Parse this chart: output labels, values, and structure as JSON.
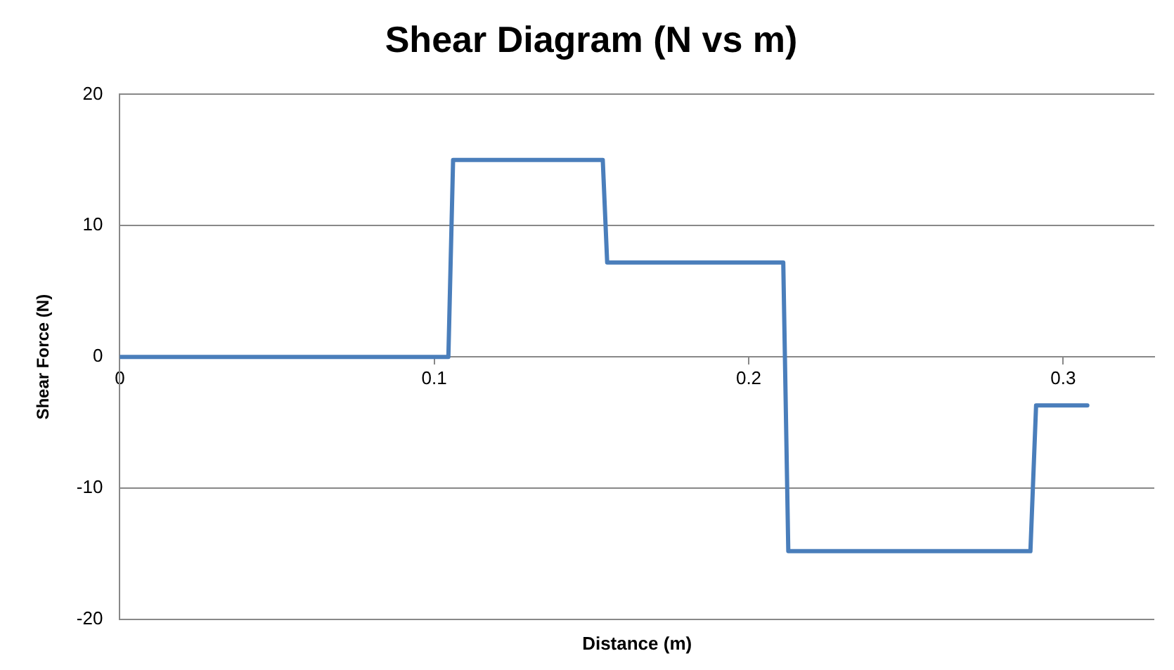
{
  "chart_data": {
    "type": "line",
    "title": "Shear Diagram (N vs m)",
    "xlabel": "Distance (m)",
    "ylabel": "Shear Force (N)",
    "x": [
      0,
      0.1045,
      0.106,
      0.1536,
      0.155,
      0.211,
      0.2126,
      0.2896,
      0.2914,
      0.3077
    ],
    "series": [
      {
        "color": "#4a7ebb",
        "values": [
          0,
          0,
          15,
          15,
          7.2,
          7.2,
          -14.8,
          -14.8,
          -3.7,
          -3.7
        ]
      }
    ],
    "xlim": [
      0,
      0.329
    ],
    "xticks": [
      0,
      0.1,
      0.2,
      0.3
    ],
    "ylim": [
      -20,
      20
    ],
    "yticks": [
      -20,
      -10,
      0,
      10,
      20
    ],
    "grid": "y",
    "legend": false,
    "marker": "none",
    "line_style": "solid"
  }
}
